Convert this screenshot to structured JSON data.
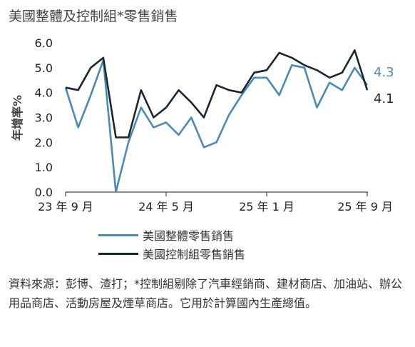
{
  "title": "美國整體及控制組*零售銷售",
  "note": "資料來源：彭博、渣打；*控制組剔除了汽車經銷商、建材商店、加油站、辦公用品商店、活動房屋及煙草商店。它用於計算國內生產總值。",
  "colors": {
    "overall": "#4a8ab5",
    "control": "#1b2633",
    "axis": "#444444"
  },
  "chart_data": {
    "type": "line",
    "ylabel": "年增率%",
    "ylim": [
      0.0,
      6.0
    ],
    "yticks": [
      "0.0",
      "1.0",
      "2.0",
      "3.0",
      "4.0",
      "5.0",
      "6.0"
    ],
    "xticks": [
      {
        "index": 0,
        "label": "23 年 9 月"
      },
      {
        "index": 8,
        "label": "24 年 5 月"
      },
      {
        "index": 16,
        "label": "25 年 1 月"
      },
      {
        "index": 24,
        "label": "25 年 9 月"
      }
    ],
    "x": [
      "2023-09",
      "2023-10",
      "2023-11",
      "2023-12",
      "2024-01",
      "2024-02",
      "2024-03",
      "2024-04",
      "2024-05",
      "2024-06",
      "2024-07",
      "2024-08",
      "2024-09",
      "2024-10",
      "2024-11",
      "2024-12",
      "2025-01",
      "2025-02",
      "2025-03",
      "2025-04",
      "2025-05",
      "2025-06",
      "2025-07",
      "2025-08",
      "2025-09"
    ],
    "series": [
      {
        "name": "美國整體零售銷售",
        "end_label": "4.3",
        "values": [
          4.2,
          2.6,
          3.9,
          5.3,
          0.0,
          2.0,
          3.4,
          2.6,
          2.8,
          2.3,
          3.0,
          1.8,
          2.0,
          3.1,
          3.9,
          4.6,
          4.6,
          3.9,
          5.1,
          5.0,
          3.4,
          4.4,
          4.1,
          5.0,
          4.3
        ]
      },
      {
        "name": "美國控制組零售銷售",
        "end_label": "4.1",
        "values": [
          4.2,
          4.1,
          5.0,
          5.4,
          2.2,
          2.2,
          4.1,
          3.0,
          3.4,
          4.1,
          3.6,
          3.0,
          4.3,
          4.1,
          4.0,
          4.8,
          4.9,
          5.6,
          5.4,
          5.1,
          4.9,
          4.6,
          4.8,
          5.7,
          4.1
        ]
      }
    ]
  }
}
